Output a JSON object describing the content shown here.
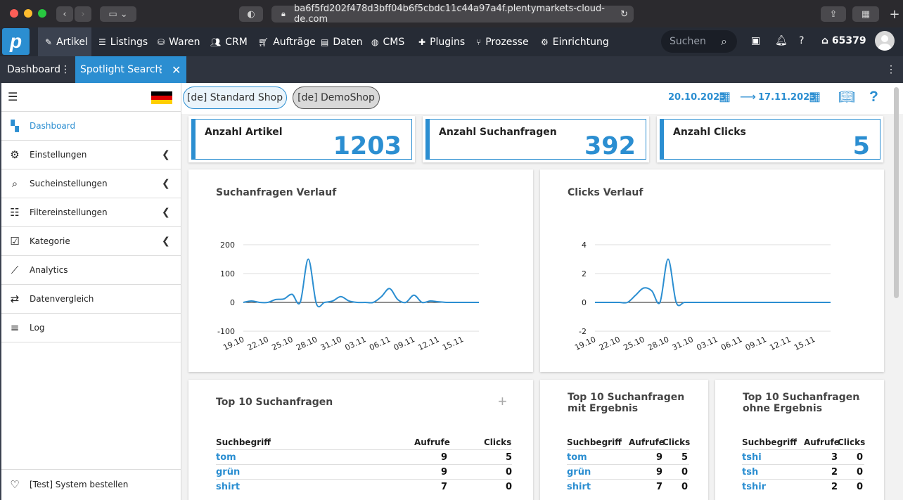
{
  "browser": {
    "url": "ba6f5fd202f478d3bff04b6f5cbdc11c44a97a4f.plentymarkets-cloud-de.com"
  },
  "nav": {
    "items": [
      {
        "label": "Artikel",
        "icon": "tag-icon"
      },
      {
        "label": "Listings",
        "icon": "listing-icon"
      },
      {
        "label": "Waren",
        "icon": "boxes-icon"
      },
      {
        "label": "CRM",
        "icon": "users-icon"
      },
      {
        "label": "Aufträge",
        "icon": "cart-icon"
      },
      {
        "label": "Daten",
        "icon": "database-icon"
      },
      {
        "label": "CMS",
        "icon": "globe-icon"
      },
      {
        "label": "Plugins",
        "icon": "puzzle-icon"
      },
      {
        "label": "Prozesse",
        "icon": "process-icon"
      },
      {
        "label": "Einrichtung",
        "icon": "gear-icon"
      }
    ],
    "search_placeholder": "Suchen",
    "account_id": "65379"
  },
  "tabs": {
    "dashboard": "Dashboard",
    "spotlight": "Spotlight Search"
  },
  "sidebar": {
    "items": [
      {
        "label": "Dashboard",
        "icon": "dashboard-icon",
        "active": true
      },
      {
        "label": "Einstellungen",
        "icon": "gear-icon"
      },
      {
        "label": "Sucheinstellungen",
        "icon": "search-icon"
      },
      {
        "label": "Filtereinstellungen",
        "icon": "sliders-icon"
      },
      {
        "label": "Kategorie",
        "icon": "checklist-icon"
      },
      {
        "label": "Analytics",
        "icon": "analytics-icon"
      },
      {
        "label": "Datenvergleich",
        "icon": "compare-icon"
      },
      {
        "label": "Log",
        "icon": "list-icon"
      }
    ],
    "footer": "[Test] System bestellen"
  },
  "shops": {
    "standard": "[de] Standard Shop",
    "demo": "[de] DemoShop"
  },
  "dates": {
    "from": "20.10.2023",
    "to": "17.11.2023"
  },
  "kpis": [
    {
      "title": "Anzahl Artikel",
      "value": "1203"
    },
    {
      "title": "Anzahl Suchanfragen",
      "value": "392"
    },
    {
      "title": "Anzahl Clicks",
      "value": "5"
    }
  ],
  "chart_data": [
    {
      "type": "line",
      "title": "Suchanfragen Verlauf",
      "x": [
        "19.10",
        "20.10",
        "21.10",
        "22.10",
        "23.10",
        "24.10",
        "25.10",
        "26.10",
        "27.10",
        "28.10",
        "29.10",
        "30.10",
        "31.10",
        "01.11",
        "02.11",
        "03.11",
        "04.11",
        "05.11",
        "06.11",
        "07.11",
        "08.11",
        "09.11",
        "10.11",
        "11.11",
        "12.11",
        "13.11",
        "14.11",
        "15.11",
        "16.11",
        "17.11"
      ],
      "x_ticks": [
        "19.10",
        "22.10",
        "25.10",
        "28.10",
        "31.10",
        "03.11",
        "06.11",
        "09.11",
        "12.11",
        "15.11"
      ],
      "values": [
        0,
        5,
        0,
        0,
        10,
        12,
        28,
        0,
        150,
        -5,
        0,
        5,
        20,
        5,
        0,
        0,
        0,
        20,
        48,
        10,
        0,
        25,
        0,
        5,
        2,
        0,
        0,
        0,
        0,
        0
      ],
      "y_ticks": [
        200,
        100,
        0,
        -100
      ],
      "ylim": [
        -100,
        200
      ]
    },
    {
      "type": "line",
      "title": "Clicks Verlauf",
      "x": [
        "19.10",
        "20.10",
        "21.10",
        "22.10",
        "23.10",
        "24.10",
        "25.10",
        "26.10",
        "27.10",
        "28.10",
        "29.10",
        "30.10",
        "31.10",
        "01.11",
        "02.11",
        "03.11",
        "04.11",
        "05.11",
        "06.11",
        "07.11",
        "08.11",
        "09.11",
        "10.11",
        "11.11",
        "12.11",
        "13.11",
        "14.11",
        "15.11",
        "16.11",
        "17.11"
      ],
      "x_ticks": [
        "19.10",
        "22.10",
        "25.10",
        "28.10",
        "31.10",
        "03.11",
        "06.11",
        "09.11",
        "12.11",
        "15.11"
      ],
      "values": [
        0,
        0,
        0,
        0,
        0,
        0.5,
        1,
        0.8,
        0,
        3,
        0,
        0,
        0,
        0,
        0,
        0,
        0,
        0,
        0,
        0,
        0,
        0,
        0,
        0,
        0,
        0,
        0,
        0,
        0,
        0
      ],
      "y_ticks": [
        4,
        2,
        0,
        -2
      ],
      "ylim": [
        -2,
        4
      ]
    }
  ],
  "top_queries": {
    "title": "Top 10 Suchanfragen",
    "col_term": "Suchbegriff",
    "col_calls": "Aufrufe",
    "col_clicks": "Clicks",
    "rows": [
      {
        "term": "tom",
        "calls": "9",
        "clicks": "5"
      },
      {
        "term": "grün",
        "calls": "9",
        "clicks": "0"
      },
      {
        "term": "shirt",
        "calls": "7",
        "clicks": "0"
      }
    ]
  },
  "top_with_result": {
    "title_line1": "Top 10 Suchanfragen",
    "title_line2": "mit Ergebnis",
    "col_term": "Suchbegriff",
    "col_calls": "Aufrufe",
    "col_clicks": "Clicks",
    "rows": [
      {
        "term": "tom",
        "calls": "9",
        "clicks": "5"
      },
      {
        "term": "grün",
        "calls": "9",
        "clicks": "0"
      },
      {
        "term": "shirt",
        "calls": "7",
        "clicks": "0"
      }
    ]
  },
  "top_without_result": {
    "title_line1": "Top 10 Suchanfragen",
    "title_line2": "ohne Ergebnis",
    "col_term": "Suchbegriff",
    "col_calls": "Aufrufe",
    "col_clicks": "Clicks",
    "rows": [
      {
        "term": "tshi",
        "calls": "3",
        "clicks": "0"
      },
      {
        "term": "tsh",
        "calls": "2",
        "clicks": "0"
      },
      {
        "term": "tshir",
        "calls": "2",
        "clicks": "0"
      }
    ]
  },
  "colors": {
    "accent": "#2b8ed1",
    "appbar": "#262b35"
  }
}
